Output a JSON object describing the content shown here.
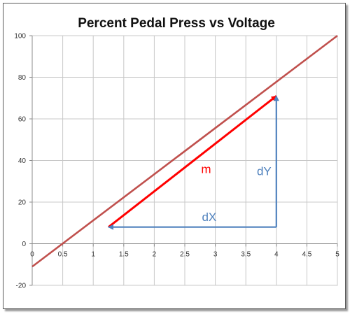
{
  "chart_data": {
    "type": "line",
    "title": "Percent Pedal Press vs Voltage",
    "xlabel": "",
    "ylabel": "",
    "xlim": [
      0,
      5
    ],
    "ylim": [
      -20,
      100
    ],
    "x_ticks": [
      0,
      0.5,
      1,
      1.5,
      2,
      2.5,
      3,
      3.5,
      4,
      4.5,
      5
    ],
    "x_tick_labels": [
      "0",
      "0.5",
      "1",
      "1.5",
      "2",
      "2.5",
      "3",
      "3.5",
      "4",
      "4.5",
      "5"
    ],
    "y_ticks": [
      -20,
      0,
      20,
      40,
      60,
      80,
      100
    ],
    "y_tick_labels": [
      "-20",
      "0",
      "20",
      "40",
      "60",
      "80",
      "100"
    ],
    "grid": true,
    "legend": "none",
    "series": [
      {
        "x": [
          0,
          5
        ],
        "y": [
          -11,
          100
        ],
        "color": "#c0504d"
      }
    ],
    "annotations": [
      {
        "label": "m",
        "color": "#ff0000",
        "from": [
          1.25,
          8
        ],
        "to": [
          4,
          71
        ],
        "label_at": [
          2.85,
          34
        ]
      },
      {
        "label": "dX",
        "color": "#4f81bd",
        "from": [
          4,
          8
        ],
        "to": [
          1.25,
          8
        ],
        "label_at": [
          2.9,
          11
        ]
      },
      {
        "label": "dY",
        "color": "#4f81bd",
        "from": [
          4,
          8
        ],
        "to": [
          4,
          71
        ],
        "label_at": [
          3.8,
          33
        ]
      }
    ]
  }
}
